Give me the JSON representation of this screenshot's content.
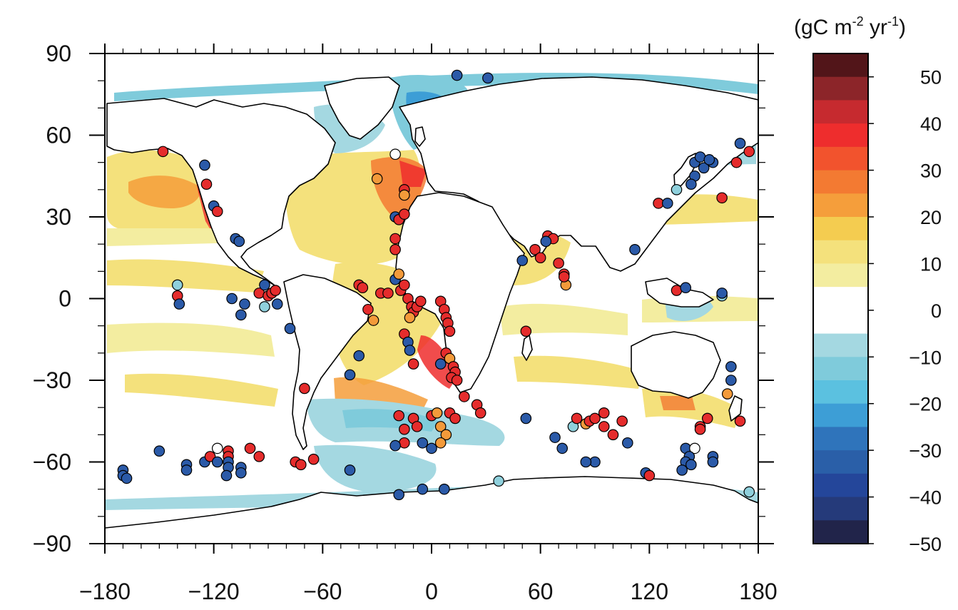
{
  "colorbar": {
    "unit_prefix": "(gC m",
    "unit_exp1": "-2",
    "unit_mid": " yr",
    "unit_exp2": "-1",
    "unit_suffix": ")",
    "ticks": [
      "50",
      "40",
      "30",
      "20",
      "10",
      "0",
      "−10",
      "−20",
      "−30",
      "−40",
      "−50"
    ],
    "colors": [
      "#521519",
      "#8c2529",
      "#c62a2f",
      "#ee2d2d",
      "#f2532d",
      "#f37a32",
      "#f59e3b",
      "#f4cc50",
      "#f4e17c",
      "#f3eda0",
      "#ffffff",
      "#ffffff",
      "#a4d8e1",
      "#7fcbdb",
      "#5bc1e0",
      "#3d9ed6",
      "#2f74bb",
      "#2a5fa8",
      "#24469a",
      "#253a7a",
      "#21244a"
    ]
  },
  "axes": {
    "x_ticks": [
      "−180",
      "−120",
      "−60",
      "0",
      "60",
      "120",
      "180"
    ],
    "y_ticks": [
      "90",
      "60",
      "30",
      "0",
      "−30",
      "−60",
      "−90"
    ],
    "x_range": [
      -180,
      180
    ],
    "y_range": [
      -90,
      90
    ]
  },
  "colors": {
    "red_marker": "#e52c2c",
    "orange_marker": "#f39a3a",
    "blue_marker": "#2b5aa8",
    "light_blue_marker": "#8fd0dc",
    "white_marker": "#ffffff"
  },
  "chart_data": {
    "type": "map",
    "points": [
      {
        "lon": -148,
        "lat": 54,
        "v": "red"
      },
      {
        "lon": -125,
        "lat": 49,
        "v": "blue"
      },
      {
        "lon": -124,
        "lat": 42,
        "v": "red"
      },
      {
        "lon": -120,
        "lat": 34,
        "v": "blue"
      },
      {
        "lon": -118,
        "lat": 32,
        "v": "red"
      },
      {
        "lon": -108,
        "lat": 22,
        "v": "blue"
      },
      {
        "lon": -106,
        "lat": 21,
        "v": "blue"
      },
      {
        "lon": -140,
        "lat": 5,
        "v": "lightblue"
      },
      {
        "lon": -140,
        "lat": 1,
        "v": "red"
      },
      {
        "lon": -139,
        "lat": -2,
        "v": "blue"
      },
      {
        "lon": -110,
        "lat": 0,
        "v": "blue"
      },
      {
        "lon": -105,
        "lat": -6,
        "v": "blue"
      },
      {
        "lon": -103,
        "lat": -2,
        "v": "blue"
      },
      {
        "lon": -95,
        "lat": 2,
        "v": "red"
      },
      {
        "lon": -92,
        "lat": 5,
        "v": "blue"
      },
      {
        "lon": -90,
        "lat": 1,
        "v": "red"
      },
      {
        "lon": -88,
        "lat": 2,
        "v": "red"
      },
      {
        "lon": -86,
        "lat": 3,
        "v": "red"
      },
      {
        "lon": -85,
        "lat": -2,
        "v": "blue"
      },
      {
        "lon": -92,
        "lat": -3,
        "v": "lightblue"
      },
      {
        "lon": -78,
        "lat": -11,
        "v": "blue"
      },
      {
        "lon": -70,
        "lat": -33,
        "v": "red"
      },
      {
        "lon": -170,
        "lat": -63,
        "v": "blue"
      },
      {
        "lon": -170,
        "lat": -65,
        "v": "blue"
      },
      {
        "lon": -168,
        "lat": -66,
        "v": "blue"
      },
      {
        "lon": -150,
        "lat": -56,
        "v": "blue"
      },
      {
        "lon": -135,
        "lat": -61,
        "v": "blue"
      },
      {
        "lon": -135,
        "lat": -63,
        "v": "blue"
      },
      {
        "lon": -125,
        "lat": -60,
        "v": "blue"
      },
      {
        "lon": -122,
        "lat": -58,
        "v": "red"
      },
      {
        "lon": -118,
        "lat": -55,
        "v": "white"
      },
      {
        "lon": -118,
        "lat": -60,
        "v": "blue"
      },
      {
        "lon": -112,
        "lat": -56,
        "v": "red"
      },
      {
        "lon": -112,
        "lat": -58,
        "v": "red"
      },
      {
        "lon": -112,
        "lat": -60,
        "v": "blue"
      },
      {
        "lon": -112,
        "lat": -62,
        "v": "blue"
      },
      {
        "lon": -113,
        "lat": -65,
        "v": "blue"
      },
      {
        "lon": -105,
        "lat": -62,
        "v": "blue"
      },
      {
        "lon": -105,
        "lat": -64,
        "v": "blue"
      },
      {
        "lon": -100,
        "lat": -55,
        "v": "red"
      },
      {
        "lon": -95,
        "lat": -58,
        "v": "red"
      },
      {
        "lon": -75,
        "lat": -60,
        "v": "red"
      },
      {
        "lon": -72,
        "lat": -61,
        "v": "red"
      },
      {
        "lon": -65,
        "lat": -59,
        "v": "red"
      },
      {
        "lon": -45,
        "lat": -63,
        "v": "blue"
      },
      {
        "lon": -40,
        "lat": 5,
        "v": "red"
      },
      {
        "lon": -38,
        "lat": 4,
        "v": "red"
      },
      {
        "lon": -35,
        "lat": -4,
        "v": "red"
      },
      {
        "lon": -32,
        "lat": -8,
        "v": "orange"
      },
      {
        "lon": -28,
        "lat": 2,
        "v": "red"
      },
      {
        "lon": -24,
        "lat": 2,
        "v": "red"
      },
      {
        "lon": -20,
        "lat": 7,
        "v": "blue"
      },
      {
        "lon": -18,
        "lat": 9,
        "v": "orange"
      },
      {
        "lon": -17,
        "lat": 3,
        "v": "red"
      },
      {
        "lon": -15,
        "lat": 5,
        "v": "red"
      },
      {
        "lon": -13,
        "lat": 0,
        "v": "red"
      },
      {
        "lon": -11,
        "lat": -3,
        "v": "red"
      },
      {
        "lon": -10,
        "lat": -5,
        "v": "red"
      },
      {
        "lon": -8,
        "lat": -3,
        "v": "red"
      },
      {
        "lon": -6,
        "lat": -1,
        "v": "red"
      },
      {
        "lon": -12,
        "lat": -7,
        "v": "orange"
      },
      {
        "lon": -15,
        "lat": -13,
        "v": "red"
      },
      {
        "lon": -13,
        "lat": -16,
        "v": "blue"
      },
      {
        "lon": -12,
        "lat": -19,
        "v": "blue"
      },
      {
        "lon": -10,
        "lat": -24,
        "v": "red"
      },
      {
        "lon": -40,
        "lat": -21,
        "v": "blue"
      },
      {
        "lon": -45,
        "lat": -28,
        "v": "blue"
      },
      {
        "lon": -30,
        "lat": 44,
        "v": "orange"
      },
      {
        "lon": -20,
        "lat": 53,
        "v": "white"
      },
      {
        "lon": -15,
        "lat": 40,
        "v": "red"
      },
      {
        "lon": -15,
        "lat": 38,
        "v": "orange"
      },
      {
        "lon": -20,
        "lat": 30,
        "v": "blue"
      },
      {
        "lon": -18,
        "lat": 29,
        "v": "red"
      },
      {
        "lon": -15,
        "lat": 31,
        "v": "red"
      },
      {
        "lon": -20,
        "lat": 22,
        "v": "red"
      },
      {
        "lon": -20,
        "lat": 18,
        "v": "red"
      },
      {
        "lon": 5,
        "lat": -1,
        "v": "red"
      },
      {
        "lon": 7,
        "lat": -4,
        "v": "red"
      },
      {
        "lon": 8,
        "lat": -7,
        "v": "red"
      },
      {
        "lon": 9,
        "lat": -9,
        "v": "red"
      },
      {
        "lon": 10,
        "lat": -12,
        "v": "red"
      },
      {
        "lon": 8,
        "lat": -20,
        "v": "red"
      },
      {
        "lon": 10,
        "lat": -22,
        "v": "orange"
      },
      {
        "lon": 12,
        "lat": -25,
        "v": "red"
      },
      {
        "lon": 13,
        "lat": -27,
        "v": "red"
      },
      {
        "lon": 11,
        "lat": -29,
        "v": "red"
      },
      {
        "lon": 14,
        "lat": -30,
        "v": "red"
      },
      {
        "lon": 5,
        "lat": -24,
        "v": "blue"
      },
      {
        "lon": 18,
        "lat": -36,
        "v": "red"
      },
      {
        "lon": -18,
        "lat": -43,
        "v": "red"
      },
      {
        "lon": -10,
        "lat": -44,
        "v": "red"
      },
      {
        "lon": -8,
        "lat": -47,
        "v": "red"
      },
      {
        "lon": -15,
        "lat": -48,
        "v": "red"
      },
      {
        "lon": 0,
        "lat": -43,
        "v": "red"
      },
      {
        "lon": 3,
        "lat": -42,
        "v": "orange"
      },
      {
        "lon": 5,
        "lat": -47,
        "v": "orange"
      },
      {
        "lon": 8,
        "lat": -50,
        "v": "orange"
      },
      {
        "lon": 10,
        "lat": -42,
        "v": "red"
      },
      {
        "lon": 13,
        "lat": -44,
        "v": "red"
      },
      {
        "lon": -5,
        "lat": -53,
        "v": "blue"
      },
      {
        "lon": 0,
        "lat": -55,
        "v": "blue"
      },
      {
        "lon": 5,
        "lat": -53,
        "v": "orange"
      },
      {
        "lon": -15,
        "lat": -53,
        "v": "red"
      },
      {
        "lon": -20,
        "lat": -54,
        "v": "blue"
      },
      {
        "lon": 25,
        "lat": -39,
        "v": "red"
      },
      {
        "lon": 27,
        "lat": -42,
        "v": "red"
      },
      {
        "lon": -18,
        "lat": -72,
        "v": "blue"
      },
      {
        "lon": -5,
        "lat": -70,
        "v": "blue"
      },
      {
        "lon": 7,
        "lat": -70,
        "v": "blue"
      },
      {
        "lon": 37,
        "lat": -67,
        "v": "lightblue"
      },
      {
        "lon": 52,
        "lat": -44,
        "v": "blue"
      },
      {
        "lon": 52,
        "lat": -12,
        "v": "red"
      },
      {
        "lon": 50,
        "lat": 14,
        "v": "blue"
      },
      {
        "lon": 57,
        "lat": 18,
        "v": "red"
      },
      {
        "lon": 60,
        "lat": 15,
        "v": "red"
      },
      {
        "lon": 64,
        "lat": 23,
        "v": "red"
      },
      {
        "lon": 67,
        "lat": 22,
        "v": "red"
      },
      {
        "lon": 63,
        "lat": 21,
        "v": "blue"
      },
      {
        "lon": 70,
        "lat": 13,
        "v": "red"
      },
      {
        "lon": 73,
        "lat": 9,
        "v": "red"
      },
      {
        "lon": 74,
        "lat": 5,
        "v": "orange"
      },
      {
        "lon": 73,
        "lat": 8,
        "v": "red"
      },
      {
        "lon": 68,
        "lat": -51,
        "v": "blue"
      },
      {
        "lon": 72,
        "lat": -55,
        "v": "blue"
      },
      {
        "lon": 78,
        "lat": -47,
        "v": "lightblue"
      },
      {
        "lon": 80,
        "lat": -44,
        "v": "red"
      },
      {
        "lon": 85,
        "lat": -46,
        "v": "orange"
      },
      {
        "lon": 87,
        "lat": -45,
        "v": "red"
      },
      {
        "lon": 90,
        "lat": -44,
        "v": "red"
      },
      {
        "lon": 95,
        "lat": -42,
        "v": "red"
      },
      {
        "lon": 95,
        "lat": -47,
        "v": "red"
      },
      {
        "lon": 100,
        "lat": -50,
        "v": "red"
      },
      {
        "lon": 105,
        "lat": -45,
        "v": "red"
      },
      {
        "lon": 108,
        "lat": -53,
        "v": "blue"
      },
      {
        "lon": 90,
        "lat": -60,
        "v": "blue"
      },
      {
        "lon": 85,
        "lat": -60,
        "v": "blue"
      },
      {
        "lon": 118,
        "lat": -64,
        "v": "blue"
      },
      {
        "lon": 120,
        "lat": -65,
        "v": "red"
      },
      {
        "lon": 14,
        "lat": 82,
        "v": "blue"
      },
      {
        "lon": 31,
        "lat": 81,
        "v": "blue"
      },
      {
        "lon": 135,
        "lat": 40,
        "v": "lightblue"
      },
      {
        "lon": 145,
        "lat": 50,
        "v": "blue"
      },
      {
        "lon": 148,
        "lat": 52,
        "v": "blue"
      },
      {
        "lon": 150,
        "lat": 48,
        "v": "blue"
      },
      {
        "lon": 155,
        "lat": 50,
        "v": "blue"
      },
      {
        "lon": 153,
        "lat": 51,
        "v": "blue"
      },
      {
        "lon": 145,
        "lat": 45,
        "v": "blue"
      },
      {
        "lon": 143,
        "lat": 42,
        "v": "blue"
      },
      {
        "lon": 125,
        "lat": 35,
        "v": "red"
      },
      {
        "lon": 130,
        "lat": 35,
        "v": "blue"
      },
      {
        "lon": 160,
        "lat": 37,
        "v": "red"
      },
      {
        "lon": 170,
        "lat": 57,
        "v": "blue"
      },
      {
        "lon": 175,
        "lat": 54,
        "v": "red"
      },
      {
        "lon": 168,
        "lat": 50,
        "v": "red"
      },
      {
        "lon": 112,
        "lat": 18,
        "v": "blue"
      },
      {
        "lon": 135,
        "lat": 3,
        "v": "red"
      },
      {
        "lon": 140,
        "lat": 4,
        "v": "blue"
      },
      {
        "lon": 160,
        "lat": 1,
        "v": "lightblue"
      },
      {
        "lon": 160,
        "lat": 2,
        "v": "blue"
      },
      {
        "lon": 165,
        "lat": -25,
        "v": "blue"
      },
      {
        "lon": 165,
        "lat": -30,
        "v": "blue"
      },
      {
        "lon": 163,
        "lat": -35,
        "v": "orange"
      },
      {
        "lon": 152,
        "lat": -44,
        "v": "red"
      },
      {
        "lon": 148,
        "lat": -47,
        "v": "red"
      },
      {
        "lon": 148,
        "lat": -48,
        "v": "red"
      },
      {
        "lon": 170,
        "lat": -45,
        "v": "red"
      },
      {
        "lon": 140,
        "lat": -55,
        "v": "blue"
      },
      {
        "lon": 145,
        "lat": -55,
        "v": "white"
      },
      {
        "lon": 142,
        "lat": -58,
        "v": "blue"
      },
      {
        "lon": 140,
        "lat": -60,
        "v": "blue"
      },
      {
        "lon": 143,
        "lat": -61,
        "v": "blue"
      },
      {
        "lon": 138,
        "lat": -63,
        "v": "blue"
      },
      {
        "lon": 155,
        "lat": -58,
        "v": "blue"
      },
      {
        "lon": 155,
        "lat": -60,
        "v": "blue"
      },
      {
        "lon": 175,
        "lat": -71,
        "v": "lightblue"
      }
    ]
  }
}
